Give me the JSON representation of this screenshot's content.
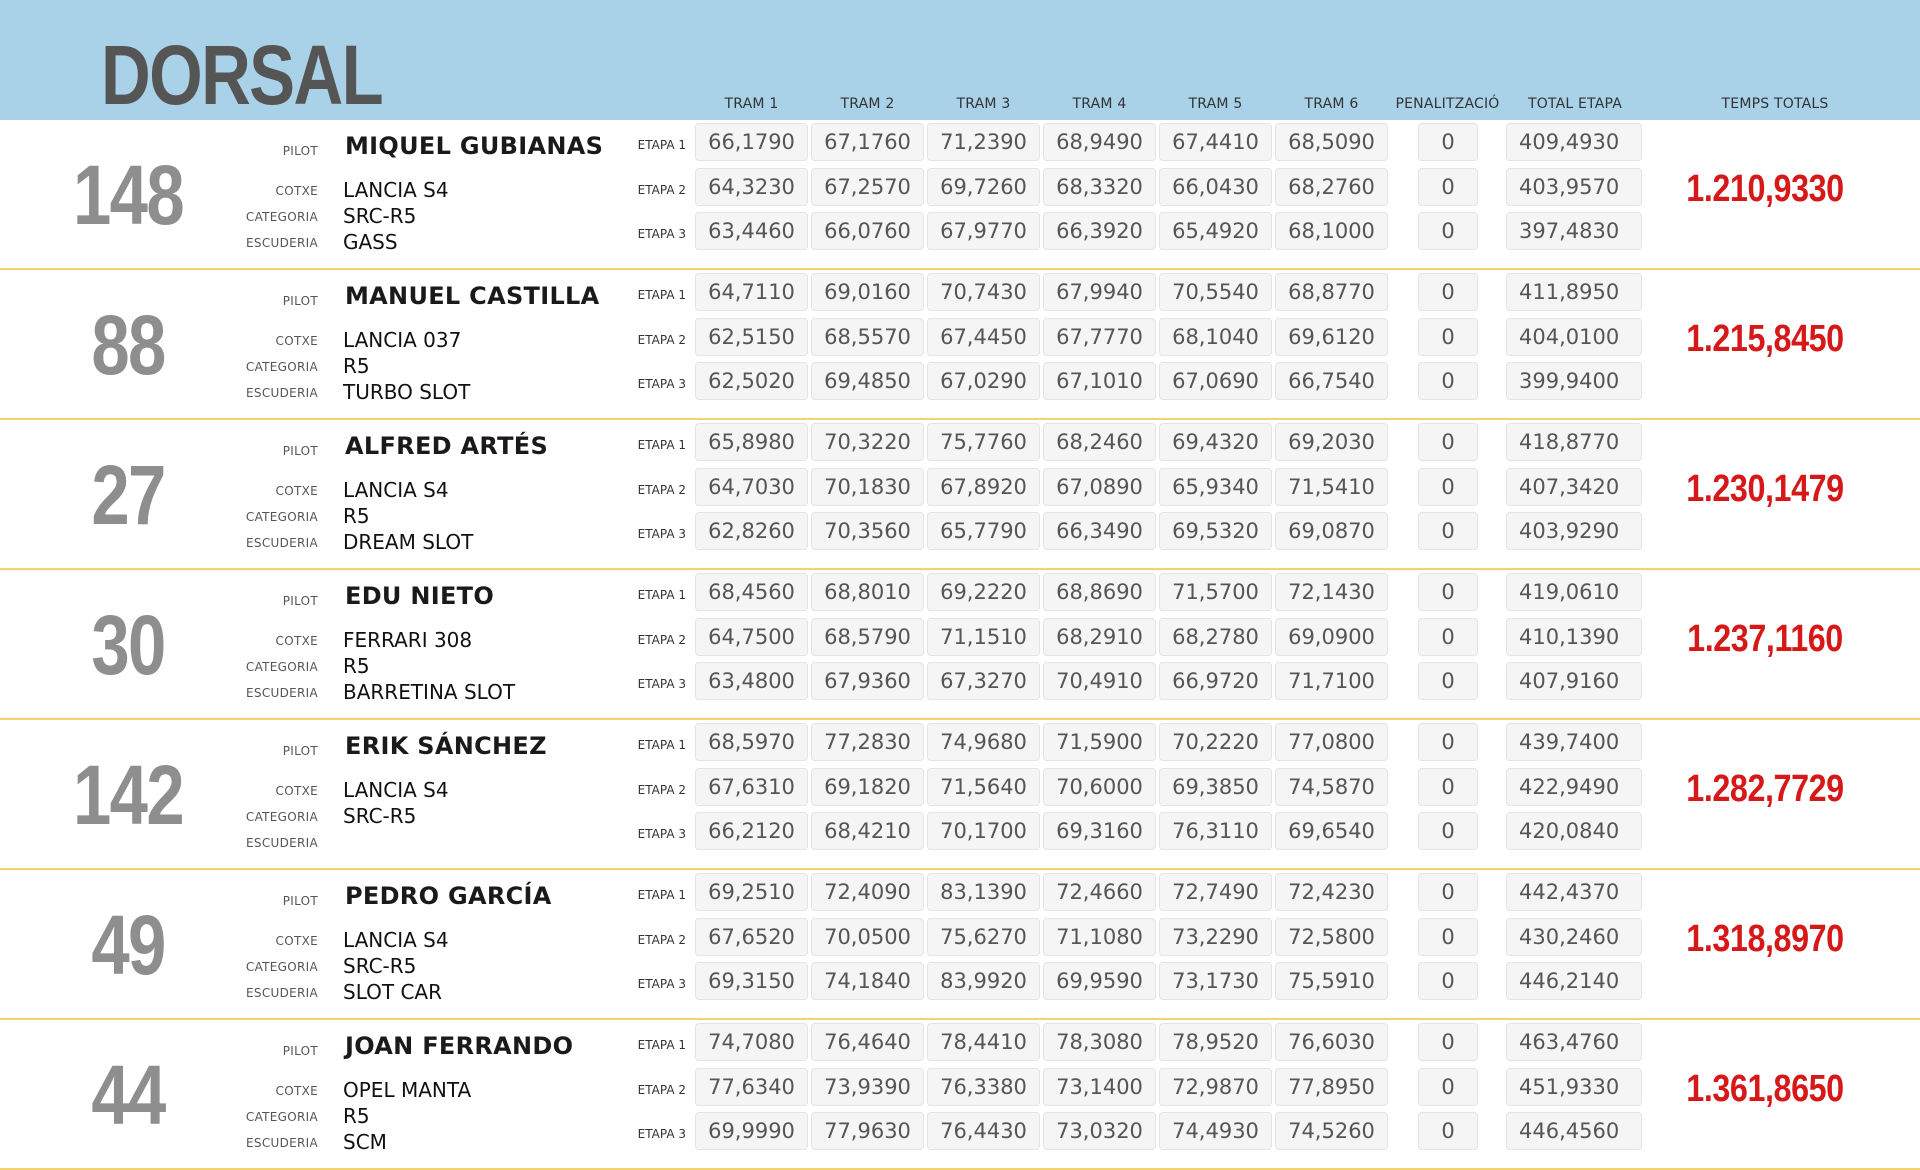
{
  "header": {
    "dorsal": "DORSAL",
    "tram_labels": [
      "TRAM 1",
      "TRAM 2",
      "TRAM 3",
      "TRAM 4",
      "TRAM 5",
      "TRAM 6"
    ],
    "penalitzacio": "PENALITZACIÓ",
    "total_etapa": "TOTAL ETAPA",
    "temps_totals": "TEMPS TOTALS"
  },
  "labels": {
    "pilot": "PILOT",
    "cotxe": "COTXE",
    "categoria": "CATEGORIA",
    "escuderia": "ESCUDERIA"
  },
  "etapa_labels": [
    "ETAPA 1",
    "ETAPA 2",
    "ETAPA 3"
  ],
  "colors": {
    "header_bg": "#a9d1e8",
    "total_red": "#d61818",
    "separator": "#f3d36b",
    "dorsal_gray": "#8e8e8e"
  },
  "entries": [
    {
      "dorsal": "148",
      "pilot": "MIQUEL GUBIANAS",
      "cotxe": "LANCIA S4",
      "categoria": "SRC-R5",
      "escuderia": "GASS",
      "etapas": [
        {
          "trams": [
            "66,1790",
            "67,1760",
            "71,2390",
            "68,9490",
            "67,4410",
            "68,5090"
          ],
          "penalitzacio": "0",
          "total": "409,4930"
        },
        {
          "trams": [
            "64,3230",
            "67,2570",
            "69,7260",
            "68,3320",
            "66,0430",
            "68,2760"
          ],
          "penalitzacio": "0",
          "total": "403,9570"
        },
        {
          "trams": [
            "63,4460",
            "66,0760",
            "67,9770",
            "66,3920",
            "65,4920",
            "68,1000"
          ],
          "penalitzacio": "0",
          "total": "397,4830"
        }
      ],
      "temps_total": "1.210,9330"
    },
    {
      "dorsal": "88",
      "pilot": "MANUEL CASTILLA",
      "cotxe": "LANCIA 037",
      "categoria": "R5",
      "escuderia": "TURBO SLOT",
      "etapas": [
        {
          "trams": [
            "64,7110",
            "69,0160",
            "70,7430",
            "67,9940",
            "70,5540",
            "68,8770"
          ],
          "penalitzacio": "0",
          "total": "411,8950"
        },
        {
          "trams": [
            "62,5150",
            "68,5570",
            "67,4450",
            "67,7770",
            "68,1040",
            "69,6120"
          ],
          "penalitzacio": "0",
          "total": "404,0100"
        },
        {
          "trams": [
            "62,5020",
            "69,4850",
            "67,0290",
            "67,1010",
            "67,0690",
            "66,7540"
          ],
          "penalitzacio": "0",
          "total": "399,9400"
        }
      ],
      "temps_total": "1.215,8450"
    },
    {
      "dorsal": "27",
      "pilot": "ALFRED ARTÉS",
      "cotxe": "LANCIA S4",
      "categoria": "R5",
      "escuderia": "DREAM SLOT",
      "etapas": [
        {
          "trams": [
            "65,8980",
            "70,3220",
            "75,7760",
            "68,2460",
            "69,4320",
            "69,2030"
          ],
          "penalitzacio": "0",
          "total": "418,8770"
        },
        {
          "trams": [
            "64,7030",
            "70,1830",
            "67,8920",
            "67,0890",
            "65,9340",
            "71,5410"
          ],
          "penalitzacio": "0",
          "total": "407,3420"
        },
        {
          "trams": [
            "62,8260",
            "70,3560",
            "65,7790",
            "66,3490",
            "69,5320",
            "69,0870"
          ],
          "penalitzacio": "0",
          "total": "403,9290"
        }
      ],
      "temps_total": "1.230,1479"
    },
    {
      "dorsal": "30",
      "pilot": "EDU NIETO",
      "cotxe": "FERRARI 308",
      "categoria": "R5",
      "escuderia": "BARRETINA SLOT",
      "etapas": [
        {
          "trams": [
            "68,4560",
            "68,8010",
            "69,2220",
            "68,8690",
            "71,5700",
            "72,1430"
          ],
          "penalitzacio": "0",
          "total": "419,0610"
        },
        {
          "trams": [
            "64,7500",
            "68,5790",
            "71,1510",
            "68,2910",
            "68,2780",
            "69,0900"
          ],
          "penalitzacio": "0",
          "total": "410,1390"
        },
        {
          "trams": [
            "63,4800",
            "67,9360",
            "67,3270",
            "70,4910",
            "66,9720",
            "71,7100"
          ],
          "penalitzacio": "0",
          "total": "407,9160"
        }
      ],
      "temps_total": "1.237,1160"
    },
    {
      "dorsal": "142",
      "pilot": "ERIK SÁNCHEZ",
      "cotxe": "LANCIA S4",
      "categoria": "SRC-R5",
      "escuderia": "",
      "etapas": [
        {
          "trams": [
            "68,5970",
            "77,2830",
            "74,9680",
            "71,5900",
            "70,2220",
            "77,0800"
          ],
          "penalitzacio": "0",
          "total": "439,7400"
        },
        {
          "trams": [
            "67,6310",
            "69,1820",
            "71,5640",
            "70,6000",
            "69,3850",
            "74,5870"
          ],
          "penalitzacio": "0",
          "total": "422,9490"
        },
        {
          "trams": [
            "66,2120",
            "68,4210",
            "70,1700",
            "69,3160",
            "76,3110",
            "69,6540"
          ],
          "penalitzacio": "0",
          "total": "420,0840"
        }
      ],
      "temps_total": "1.282,7729"
    },
    {
      "dorsal": "49",
      "pilot": "PEDRO GARCÍA",
      "cotxe": "LANCIA S4",
      "categoria": "SRC-R5",
      "escuderia": "SLOT CAR",
      "etapas": [
        {
          "trams": [
            "69,2510",
            "72,4090",
            "83,1390",
            "72,4660",
            "72,7490",
            "72,4230"
          ],
          "penalitzacio": "0",
          "total": "442,4370"
        },
        {
          "trams": [
            "67,6520",
            "70,0500",
            "75,6270",
            "71,1080",
            "73,2290",
            "72,5800"
          ],
          "penalitzacio": "0",
          "total": "430,2460"
        },
        {
          "trams": [
            "69,3150",
            "74,1840",
            "83,9920",
            "69,9590",
            "73,1730",
            "75,5910"
          ],
          "penalitzacio": "0",
          "total": "446,2140"
        }
      ],
      "temps_total": "1.318,8970"
    },
    {
      "dorsal": "44",
      "pilot": "JOAN FERRANDO",
      "cotxe": "OPEL MANTA",
      "categoria": "R5",
      "escuderia": "SCM",
      "etapas": [
        {
          "trams": [
            "74,7080",
            "76,4640",
            "78,4410",
            "78,3080",
            "78,9520",
            "76,6030"
          ],
          "penalitzacio": "0",
          "total": "463,4760"
        },
        {
          "trams": [
            "77,6340",
            "73,9390",
            "76,3380",
            "73,1400",
            "72,9870",
            "77,8950"
          ],
          "penalitzacio": "0",
          "total": "451,9330"
        },
        {
          "trams": [
            "69,9990",
            "77,9630",
            "76,4430",
            "73,0320",
            "74,4930",
            "74,5260"
          ],
          "penalitzacio": "0",
          "total": "446,4560"
        }
      ],
      "temps_total": "1.361,8650"
    }
  ]
}
